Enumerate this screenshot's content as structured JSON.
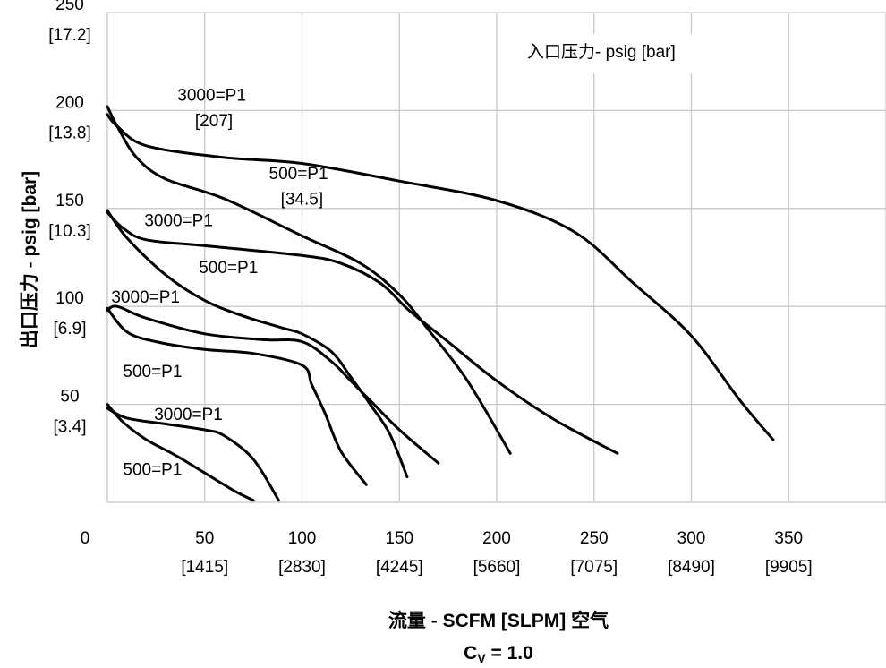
{
  "chart_data": {
    "type": "line",
    "legend_title": "入口压力- psig [bar]",
    "xlabel": "流量 - SCFM [SLPM] 空气",
    "subtitle_prefix": "C",
    "subtitle_sub": "V",
    "subtitle_suffix": " = 1.0",
    "ylabel": "出口压力 - psig [bar]",
    "xlim": [
      0,
      400
    ],
    "ylim": [
      0,
      250
    ],
    "grid": true,
    "x_ticks": [
      {
        "value": 0,
        "label": "0",
        "sub": ""
      },
      {
        "value": 50,
        "label": "50",
        "sub": "[1415]"
      },
      {
        "value": 100,
        "label": "100",
        "sub": "[2830]"
      },
      {
        "value": 150,
        "label": "150",
        "sub": "[4245]"
      },
      {
        "value": 200,
        "label": "200",
        "sub": "[5660]"
      },
      {
        "value": 250,
        "label": "250",
        "sub": "[7075]"
      },
      {
        "value": 300,
        "label": "300",
        "sub": "[8490]"
      },
      {
        "value": 350,
        "label": "350",
        "sub": "[9905]"
      }
    ],
    "y_ticks": [
      {
        "value": 50,
        "label": "50",
        "sub": "[3.4]"
      },
      {
        "value": 100,
        "label": "100",
        "sub": "[6.9]"
      },
      {
        "value": 150,
        "label": "150",
        "sub": "[10.3]"
      },
      {
        "value": 200,
        "label": "200",
        "sub": "[13.8]"
      },
      {
        "value": 250,
        "label": "250",
        "sub": "[17.2]"
      }
    ],
    "series": [
      {
        "name": "3000=P1 [207]",
        "points": [
          [
            0,
            198
          ],
          [
            5,
            192
          ],
          [
            20,
            182
          ],
          [
            60,
            176
          ],
          [
            100,
            173
          ],
          [
            150,
            164
          ],
          [
            200,
            154
          ],
          [
            240,
            138
          ],
          [
            270,
            112
          ],
          [
            300,
            85
          ],
          [
            325,
            52
          ],
          [
            342,
            32
          ]
        ]
      },
      {
        "name": "500=P1 [34.5]",
        "points": [
          [
            0,
            202
          ],
          [
            5,
            192
          ],
          [
            15,
            176
          ],
          [
            30,
            165
          ],
          [
            60,
            155
          ],
          [
            100,
            136
          ],
          [
            130,
            122
          ],
          [
            150,
            106
          ],
          [
            165,
            88
          ],
          [
            185,
            62
          ],
          [
            207,
            25
          ]
        ]
      },
      {
        "name": "3000=P1",
        "points": [
          [
            0,
            148
          ],
          [
            8,
            140
          ],
          [
            20,
            134
          ],
          [
            50,
            131
          ],
          [
            100,
            126
          ],
          [
            120,
            122
          ],
          [
            140,
            112
          ],
          [
            155,
            98
          ],
          [
            175,
            82
          ],
          [
            200,
            62
          ],
          [
            230,
            42
          ],
          [
            262,
            25
          ]
        ]
      },
      {
        "name": "500=P1",
        "points": [
          [
            0,
            149
          ],
          [
            10,
            135
          ],
          [
            30,
            116
          ],
          [
            50,
            103
          ],
          [
            70,
            95
          ],
          [
            90,
            89
          ],
          [
            100,
            86
          ],
          [
            115,
            77
          ],
          [
            125,
            64
          ],
          [
            135,
            50
          ],
          [
            145,
            35
          ],
          [
            154,
            13
          ]
        ]
      },
      {
        "name": "3000=P1",
        "points": [
          [
            0,
            98
          ],
          [
            5,
            100
          ],
          [
            20,
            94
          ],
          [
            50,
            86
          ],
          [
            80,
            83
          ],
          [
            100,
            82
          ],
          [
            115,
            72
          ],
          [
            125,
            62
          ],
          [
            135,
            52
          ],
          [
            150,
            37
          ],
          [
            170,
            20
          ]
        ]
      },
      {
        "name": "500=P1",
        "points": [
          [
            0,
            99
          ],
          [
            10,
            87
          ],
          [
            25,
            82
          ],
          [
            50,
            78
          ],
          [
            75,
            76
          ],
          [
            100,
            70
          ],
          [
            105,
            60
          ],
          [
            112,
            45
          ],
          [
            120,
            26
          ],
          [
            133,
            9
          ]
        ]
      },
      {
        "name": "3000=P1",
        "points": [
          [
            0,
            48
          ],
          [
            10,
            43
          ],
          [
            30,
            40
          ],
          [
            50,
            37
          ],
          [
            60,
            34
          ],
          [
            75,
            22
          ],
          [
            88,
            1
          ]
        ]
      },
      {
        "name": "500=P1",
        "points": [
          [
            0,
            50
          ],
          [
            8,
            41
          ],
          [
            20,
            32
          ],
          [
            35,
            24
          ],
          [
            50,
            15
          ],
          [
            65,
            6
          ],
          [
            75,
            1
          ]
        ]
      }
    ],
    "curve_labels": [
      {
        "text": "3000=P1",
        "x": 36,
        "y": 205
      },
      {
        "text": "[207]",
        "x": 45,
        "y": 192
      },
      {
        "text": "500=P1",
        "x": 83,
        "y": 165
      },
      {
        "text": "[34.5]",
        "x": 89,
        "y": 152
      },
      {
        "text": "3000=P1",
        "x": 19,
        "y": 141
      },
      {
        "text": "500=P1",
        "x": 47,
        "y": 117
      },
      {
        "text": "3000=P1",
        "x": 2,
        "y": 102
      },
      {
        "text": "500=P1",
        "x": 8,
        "y": 64
      },
      {
        "text": "3000=P1",
        "x": 24,
        "y": 42
      },
      {
        "text": "500=P1",
        "x": 8,
        "y": 14
      }
    ]
  }
}
